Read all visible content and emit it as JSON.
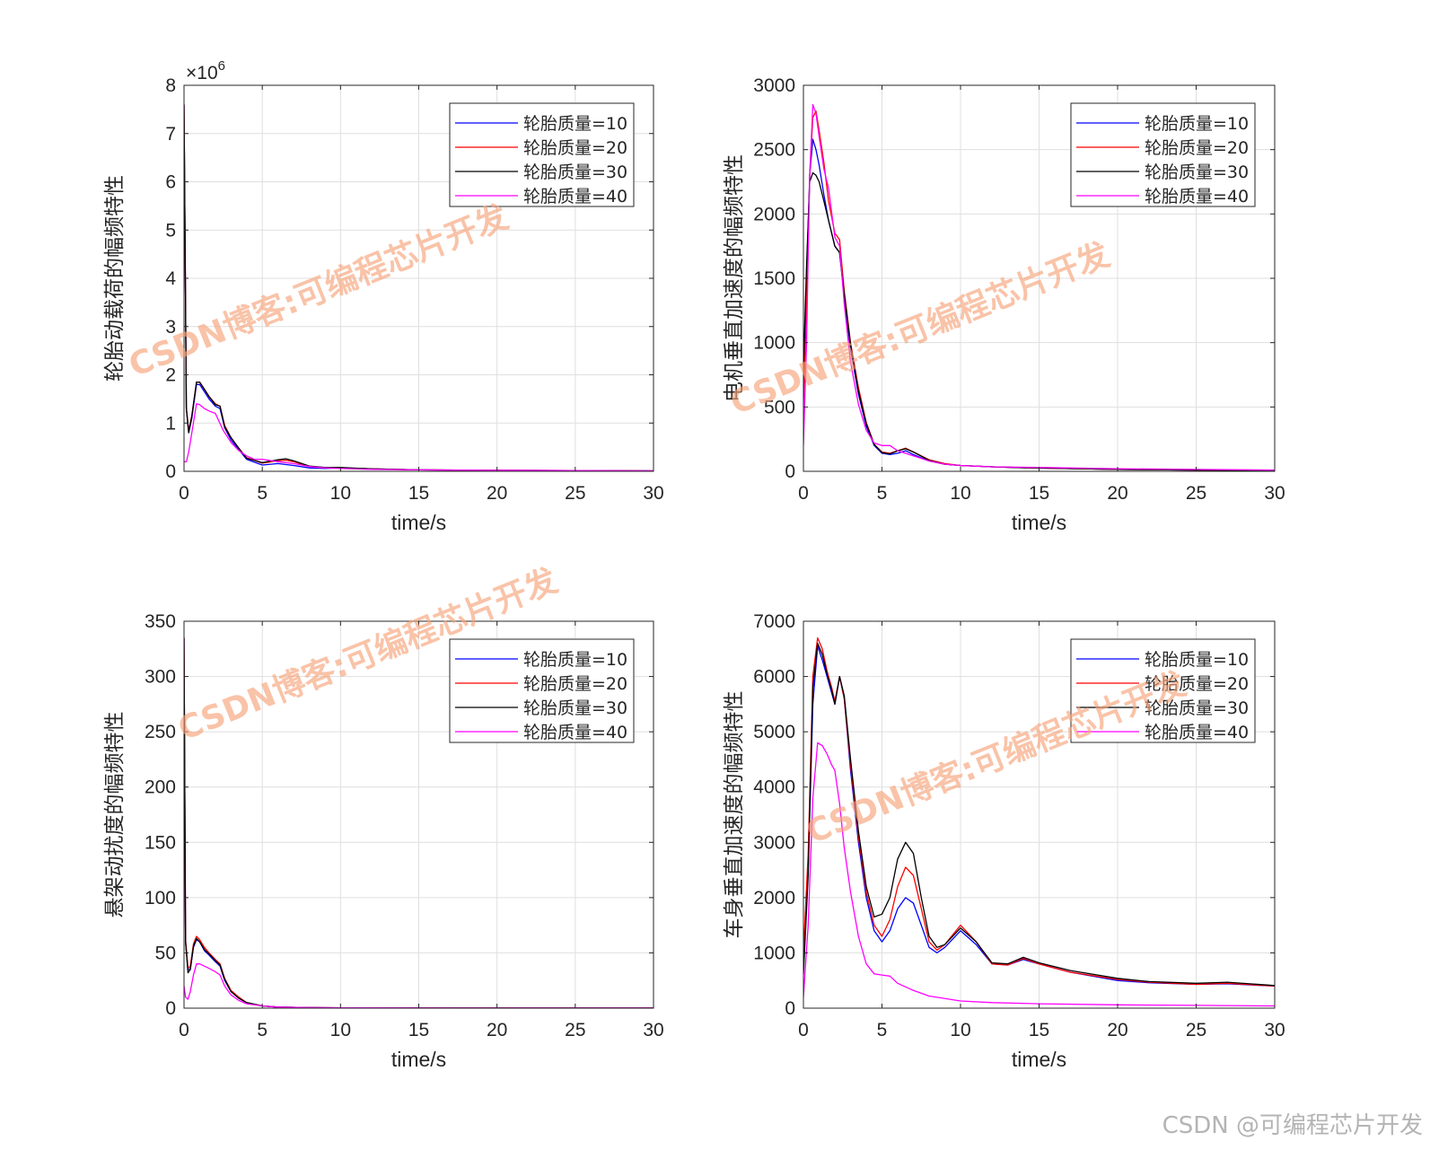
{
  "chart_data": [
    {
      "type": "line",
      "ylabel": "轮胎动载荷的幅频特性",
      "xlabel": "time/s",
      "exponent_label": "×10",
      "exponent_power": "6",
      "ylim": [
        0,
        8
      ],
      "yticks": [
        0,
        1,
        2,
        3,
        4,
        5,
        6,
        7,
        8
      ],
      "xlim": [
        0,
        30
      ],
      "xticks": [
        0,
        5,
        10,
        15,
        20,
        25,
        30
      ],
      "grid": true,
      "legend_position": "top-right",
      "series": [
        {
          "name": "轮胎质量=10",
          "color": "#0000ff",
          "x": [
            0,
            0.15,
            0.3,
            0.5,
            0.8,
            1.0,
            1.3,
            1.6,
            2.0,
            2.3,
            2.6,
            3.0,
            3.5,
            4.0,
            5.0,
            6.0,
            7.0,
            8.0,
            9.0,
            10.0,
            12.0,
            15.0,
            20.0,
            25.0,
            30.0
          ],
          "y": [
            7.6,
            1.3,
            0.8,
            1.1,
            1.8,
            1.8,
            1.65,
            1.5,
            1.35,
            1.3,
            0.9,
            0.65,
            0.45,
            0.25,
            0.13,
            0.16,
            0.12,
            0.07,
            0.06,
            0.07,
            0.05,
            0.03,
            0.02,
            0.015,
            0.01
          ]
        },
        {
          "name": "轮胎质量=20",
          "color": "#ff0000",
          "x": [
            0,
            0.15,
            0.3,
            0.5,
            0.8,
            1.0,
            1.3,
            1.6,
            2.0,
            2.3,
            2.6,
            3.0,
            3.5,
            4.0,
            5.0,
            6.0,
            6.5,
            7.0,
            8.0,
            9.0,
            10.0,
            12.0,
            15.0,
            20.0,
            25.0,
            30.0
          ],
          "y": [
            7.6,
            1.3,
            0.85,
            1.15,
            1.85,
            1.85,
            1.7,
            1.55,
            1.4,
            1.35,
            0.95,
            0.7,
            0.48,
            0.28,
            0.17,
            0.22,
            0.23,
            0.2,
            0.1,
            0.07,
            0.07,
            0.05,
            0.03,
            0.02,
            0.015,
            0.01
          ]
        },
        {
          "name": "轮胎质量=30",
          "color": "#000000",
          "x": [
            0,
            0.15,
            0.3,
            0.5,
            0.8,
            1.0,
            1.3,
            1.6,
            2.0,
            2.3,
            2.6,
            3.0,
            3.5,
            4.0,
            5.0,
            6.0,
            6.5,
            7.0,
            8.0,
            9.0,
            10.0,
            12.0,
            15.0,
            20.0,
            25.0,
            30.0
          ],
          "y": [
            7.6,
            1.3,
            0.8,
            1.15,
            1.85,
            1.85,
            1.7,
            1.55,
            1.38,
            1.35,
            0.92,
            0.7,
            0.48,
            0.27,
            0.18,
            0.24,
            0.26,
            0.22,
            0.11,
            0.08,
            0.08,
            0.05,
            0.03,
            0.02,
            0.015,
            0.01
          ]
        },
        {
          "name": "轮胎质量=40",
          "color": "#ff00ff",
          "x": [
            0,
            0.15,
            0.3,
            0.5,
            0.8,
            1.0,
            1.3,
            1.6,
            2.0,
            2.5,
            3.0,
            3.5,
            4.0,
            4.5,
            5.0,
            6.0,
            7.0,
            8.0,
            9.0,
            10.0,
            12.0,
            15.0,
            20.0,
            25.0,
            30.0
          ],
          "y": [
            0.2,
            0.2,
            0.4,
            0.8,
            1.4,
            1.38,
            1.3,
            1.25,
            1.2,
            0.85,
            0.6,
            0.43,
            0.32,
            0.25,
            0.25,
            0.2,
            0.16,
            0.1,
            0.07,
            0.06,
            0.04,
            0.03,
            0.02,
            0.015,
            0.01
          ]
        }
      ]
    },
    {
      "type": "line",
      "ylabel": "电机垂直加速度的幅频特性",
      "xlabel": "time/s",
      "ylim": [
        0,
        3000
      ],
      "yticks": [
        0,
        500,
        1000,
        1500,
        2000,
        2500,
        3000
      ],
      "xlim": [
        0,
        30
      ],
      "xticks": [
        0,
        5,
        10,
        15,
        20,
        25,
        30
      ],
      "grid": true,
      "legend_position": "top-right",
      "series": [
        {
          "name": "轮胎质量=10",
          "color": "#0000ff",
          "x": [
            0,
            0.2,
            0.4,
            0.6,
            0.8,
            1.0,
            1.3,
            1.6,
            2.0,
            2.3,
            2.6,
            3.0,
            3.5,
            4.0,
            4.5,
            5.0,
            5.5,
            6.0,
            6.5,
            7.0,
            8.0,
            9.0,
            10.0,
            12.0,
            15.0,
            20.0,
            25.0,
            30.0
          ],
          "y": [
            700,
            1500,
            2300,
            2580,
            2500,
            2380,
            2150,
            1950,
            1750,
            1700,
            1350,
            950,
            600,
            350,
            200,
            140,
            130,
            140,
            160,
            130,
            80,
            55,
            45,
            35,
            25,
            15,
            10,
            5
          ]
        },
        {
          "name": "轮胎质量=20",
          "color": "#ff0000",
          "x": [
            0,
            0.2,
            0.4,
            0.6,
            0.8,
            1.0,
            1.3,
            1.6,
            2.0,
            2.3,
            2.6,
            3.0,
            3.5,
            4.0,
            4.5,
            5.0,
            5.5,
            6.0,
            6.5,
            7.0,
            8.0,
            9.0,
            10.0,
            12.0,
            15.0,
            20.0,
            25.0,
            30.0
          ],
          "y": [
            500,
            1300,
            2300,
            2750,
            2800,
            2650,
            2400,
            2100,
            1850,
            1800,
            1400,
            1000,
            650,
            380,
            210,
            150,
            140,
            160,
            180,
            150,
            90,
            60,
            45,
            35,
            25,
            15,
            10,
            5
          ]
        },
        {
          "name": "轮胎质量=30",
          "color": "#000000",
          "x": [
            0,
            0.2,
            0.4,
            0.6,
            0.8,
            1.0,
            1.3,
            1.6,
            2.0,
            2.3,
            2.6,
            3.0,
            3.5,
            4.0,
            4.5,
            5.0,
            5.5,
            6.0,
            6.5,
            7.0,
            8.0,
            9.0,
            10.0,
            12.0,
            15.0,
            20.0,
            25.0,
            30.0
          ],
          "y": [
            800,
            1600,
            2250,
            2320,
            2300,
            2250,
            2100,
            1950,
            1750,
            1700,
            1380,
            980,
            620,
            370,
            210,
            145,
            135,
            160,
            175,
            150,
            85,
            55,
            45,
            35,
            25,
            15,
            10,
            5
          ]
        },
        {
          "name": "轮胎质量=40",
          "color": "#ff00ff",
          "x": [
            0,
            0.2,
            0.4,
            0.6,
            0.8,
            1.0,
            1.3,
            1.6,
            2.0,
            2.3,
            2.6,
            3.0,
            3.5,
            4.0,
            4.5,
            5.0,
            5.5,
            6.0,
            6.5,
            7.0,
            8.0,
            9.0,
            10.0,
            12.0,
            15.0,
            20.0,
            25.0,
            30.0
          ],
          "y": [
            200,
            1000,
            2300,
            2850,
            2780,
            2600,
            2350,
            2200,
            1820,
            1750,
            1300,
            850,
            520,
            320,
            220,
            200,
            200,
            160,
            140,
            120,
            80,
            55,
            45,
            35,
            30,
            20,
            15,
            10
          ]
        }
      ]
    },
    {
      "type": "line",
      "ylabel": "悬架动扰度的幅频特性",
      "xlabel": "time/s",
      "ylim": [
        0,
        350
      ],
      "yticks": [
        0,
        50,
        100,
        150,
        200,
        250,
        300,
        350
      ],
      "xlim": [
        0,
        30
      ],
      "xticks": [
        0,
        5,
        10,
        15,
        20,
        25,
        30
      ],
      "grid": true,
      "legend_position": "top-right",
      "series": [
        {
          "name": "轮胎质量=10",
          "color": "#0000ff",
          "x": [
            0,
            0.1,
            0.25,
            0.4,
            0.6,
            0.8,
            1.0,
            1.3,
            1.6,
            2.0,
            2.3,
            2.6,
            3.0,
            3.5,
            4.0,
            5.0,
            6.0,
            8.0,
            10.0,
            15.0,
            20.0,
            25.0,
            30.0
          ],
          "y": [
            335,
            60,
            35,
            35,
            55,
            62,
            60,
            52,
            48,
            42,
            38,
            25,
            15,
            9,
            5,
            2,
            1,
            0.5,
            0.3,
            0.2,
            0.1,
            0.1,
            0.1
          ]
        },
        {
          "name": "轮胎质量=20",
          "color": "#ff0000",
          "x": [
            0,
            0.1,
            0.25,
            0.4,
            0.6,
            0.8,
            1.0,
            1.3,
            1.6,
            2.0,
            2.3,
            2.6,
            3.0,
            3.5,
            4.0,
            5.0,
            6.0,
            8.0,
            10.0,
            15.0,
            20.0,
            25.0,
            30.0
          ],
          "y": [
            335,
            62,
            36,
            38,
            58,
            65,
            62,
            55,
            50,
            44,
            40,
            27,
            16,
            10,
            5,
            2,
            1,
            0.5,
            0.3,
            0.2,
            0.1,
            0.1,
            0.1
          ]
        },
        {
          "name": "轮胎质量=30",
          "color": "#000000",
          "x": [
            0,
            0.1,
            0.25,
            0.4,
            0.6,
            0.8,
            1.0,
            1.3,
            1.6,
            2.0,
            2.3,
            2.6,
            3.0,
            3.5,
            4.0,
            5.0,
            6.0,
            8.0,
            10.0,
            15.0,
            20.0,
            25.0,
            30.0
          ],
          "y": [
            335,
            60,
            32,
            35,
            56,
            63,
            60,
            53,
            49,
            43,
            39,
            26,
            15,
            9,
            5,
            2,
            1,
            0.5,
            0.3,
            0.2,
            0.1,
            0.1,
            0.1
          ]
        },
        {
          "name": "轮胎质量=40",
          "color": "#ff00ff",
          "x": [
            0,
            0.1,
            0.25,
            0.4,
            0.6,
            0.8,
            1.0,
            1.3,
            1.6,
            2.0,
            2.3,
            2.6,
            3.0,
            3.5,
            4.0,
            5.0,
            6.0,
            8.0,
            10.0,
            15.0,
            20.0,
            25.0,
            30.0
          ],
          "y": [
            20,
            10,
            8,
            15,
            30,
            40,
            40,
            38,
            36,
            33,
            30,
            20,
            12,
            7,
            4,
            2,
            1,
            0.5,
            0.3,
            0.2,
            0.1,
            0.1,
            0.1
          ]
        }
      ]
    },
    {
      "type": "line",
      "ylabel": "车身垂直加速度的幅频特性",
      "xlabel": "time/s",
      "ylim": [
        0,
        7000
      ],
      "yticks": [
        0,
        1000,
        2000,
        3000,
        4000,
        5000,
        6000,
        7000
      ],
      "xlim": [
        0,
        30
      ],
      "xticks": [
        0,
        5,
        10,
        15,
        20,
        25,
        30
      ],
      "grid": true,
      "legend_position": "top-right",
      "series": [
        {
          "name": "轮胎质量=10",
          "color": "#0000ff",
          "x": [
            0,
            0.3,
            0.6,
            0.9,
            1.2,
            1.5,
            1.8,
            2.0,
            2.3,
            2.6,
            3.0,
            3.5,
            4.0,
            4.5,
            5.0,
            5.5,
            6.0,
            6.5,
            7.0,
            7.5,
            8.0,
            8.5,
            9.0,
            10.0,
            11.0,
            12.0,
            13.0,
            14.0,
            15.0,
            17.0,
            20.0,
            22.0,
            25.0,
            27.0,
            30.0
          ],
          "y": [
            800,
            2500,
            5500,
            6550,
            6300,
            6000,
            5700,
            5500,
            6000,
            5600,
            4300,
            3000,
            2000,
            1400,
            1200,
            1400,
            1800,
            2000,
            1900,
            1500,
            1100,
            1000,
            1100,
            1400,
            1150,
            800,
            780,
            880,
            800,
            650,
            500,
            460,
            430,
            440,
            400
          ]
        },
        {
          "name": "轮胎质量=20",
          "color": "#ff0000",
          "x": [
            0,
            0.3,
            0.6,
            0.9,
            1.2,
            1.5,
            1.8,
            2.0,
            2.3,
            2.6,
            3.0,
            3.5,
            4.0,
            4.5,
            5.0,
            5.5,
            6.0,
            6.5,
            7.0,
            7.5,
            8.0,
            8.5,
            9.0,
            10.0,
            11.0,
            12.0,
            13.0,
            14.0,
            15.0,
            17.0,
            20.0,
            22.0,
            25.0,
            27.0,
            30.0
          ],
          "y": [
            1000,
            2800,
            6000,
            6700,
            6500,
            6100,
            5800,
            5550,
            6000,
            5600,
            4400,
            3100,
            2100,
            1500,
            1300,
            1600,
            2200,
            2550,
            2400,
            1800,
            1200,
            1050,
            1150,
            1500,
            1200,
            800,
            780,
            900,
            800,
            650,
            520,
            470,
            430,
            450,
            400
          ]
        },
        {
          "name": "轮胎质量=30",
          "color": "#000000",
          "x": [
            0,
            0.3,
            0.6,
            0.9,
            1.2,
            1.5,
            1.8,
            2.0,
            2.3,
            2.6,
            3.0,
            3.5,
            4.0,
            4.5,
            5.0,
            5.5,
            6.0,
            6.5,
            7.0,
            7.5,
            8.0,
            8.5,
            9.0,
            10.0,
            11.0,
            12.0,
            13.0,
            14.0,
            15.0,
            17.0,
            20.0,
            22.0,
            25.0,
            27.0,
            30.0
          ],
          "y": [
            600,
            2400,
            5800,
            6600,
            6400,
            6050,
            5750,
            5500,
            6000,
            5650,
            4500,
            3200,
            2200,
            1650,
            1700,
            2000,
            2700,
            3000,
            2800,
            2000,
            1300,
            1100,
            1150,
            1450,
            1200,
            820,
            800,
            920,
            820,
            680,
            540,
            480,
            450,
            470,
            410
          ]
        },
        {
          "name": "轮胎质量=40",
          "color": "#ff00ff",
          "x": [
            0,
            0.3,
            0.6,
            0.9,
            1.2,
            1.5,
            1.8,
            2.0,
            2.3,
            2.6,
            3.0,
            3.5,
            4.0,
            4.5,
            5.0,
            5.5,
            6.0,
            7.0,
            8.0,
            10.0,
            12.0,
            15.0,
            20.0,
            25.0,
            30.0
          ],
          "y": [
            200,
            1500,
            3800,
            4800,
            4750,
            4600,
            4400,
            4300,
            3700,
            2900,
            2100,
            1300,
            800,
            620,
            600,
            580,
            450,
            320,
            220,
            130,
            100,
            80,
            60,
            50,
            40
          ]
        }
      ]
    }
  ],
  "watermark": "CSDN博客:可编程芯片开发",
  "credit": "CSDN @可编程芯片开发"
}
